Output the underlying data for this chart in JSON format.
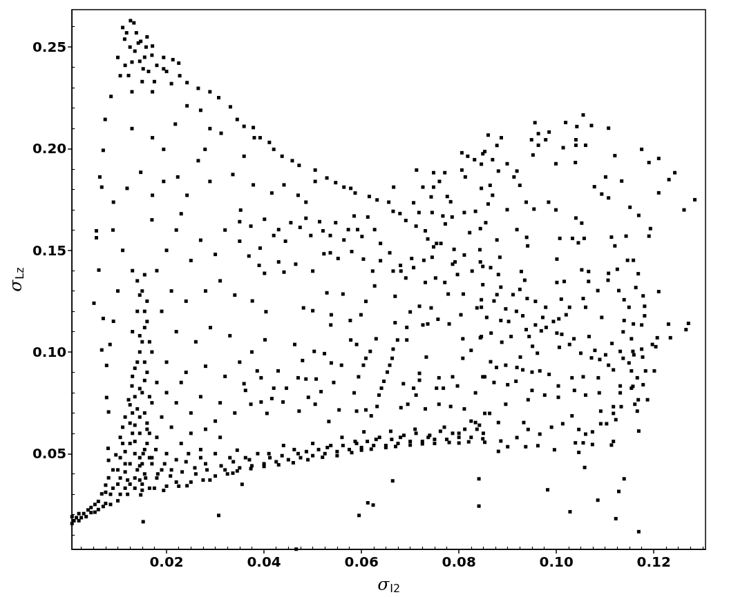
{
  "chart_data": {
    "type": "scatter",
    "xlabel": "σ$_{I2}$",
    "ylabel": "σ$_{Lz}$",
    "color": "#000000",
    "marker": "square",
    "grid": false,
    "xlim": [
      0.0006,
      0.1306
    ],
    "ylim": [
      0.0029,
      0.2684
    ],
    "xticks": [
      {
        "value": 0.0025,
        "label": null
      },
      {
        "value": 0.005,
        "label": null
      },
      {
        "value": 0.0075,
        "label": null
      },
      {
        "value": 0.01,
        "label": null
      },
      {
        "value": 0.0125,
        "label": null
      },
      {
        "value": 0.015,
        "label": null
      },
      {
        "value": 0.0175,
        "label": null
      },
      0.02,
      {
        "value": 0.0225,
        "label": null
      },
      {
        "value": 0.025,
        "label": null
      },
      {
        "value": 0.0275,
        "label": null
      },
      {
        "value": 0.03,
        "label": null
      },
      {
        "value": 0.0325,
        "label": null
      },
      {
        "value": 0.035,
        "label": null
      },
      {
        "value": 0.0375,
        "label": null
      },
      0.04,
      {
        "value": 0.0425,
        "label": null
      },
      {
        "value": 0.045,
        "label": null
      },
      {
        "value": 0.0475,
        "label": null
      },
      {
        "value": 0.05,
        "label": null
      },
      {
        "value": 0.0525,
        "label": null
      },
      {
        "value": 0.055,
        "label": null
      },
      {
        "value": 0.0575,
        "label": null
      },
      0.06,
      {
        "value": 0.0625,
        "label": null
      },
      {
        "value": 0.065,
        "label": null
      },
      {
        "value": 0.0675,
        "label": null
      },
      {
        "value": 0.07,
        "label": null
      },
      {
        "value": 0.0725,
        "label": null
      },
      {
        "value": 0.075,
        "label": null
      },
      {
        "value": 0.0775,
        "label": null
      },
      0.08,
      {
        "value": 0.0825,
        "label": null
      },
      {
        "value": 0.085,
        "label": null
      },
      {
        "value": 0.0875,
        "label": null
      },
      {
        "value": 0.09,
        "label": null
      },
      {
        "value": 0.0925,
        "label": null
      },
      {
        "value": 0.095,
        "label": null
      },
      {
        "value": 0.0975,
        "label": null
      },
      {
        "value": 0.1,
        "label": "0.10"
      },
      {
        "value": 0.1025,
        "label": null
      },
      {
        "value": 0.105,
        "label": null
      },
      {
        "value": 0.1075,
        "label": null
      },
      {
        "value": 0.11,
        "label": null
      },
      {
        "value": 0.1125,
        "label": null
      },
      {
        "value": 0.115,
        "label": null
      },
      {
        "value": 0.1175,
        "label": null
      },
      0.12,
      {
        "value": 0.1225,
        "label": null
      },
      {
        "value": 0.125,
        "label": null
      },
      {
        "value": 0.1275,
        "label": null
      },
      {
        "value": 0.13,
        "label": null
      }
    ],
    "yticks": [
      {
        "value": 0.01,
        "label": null
      },
      {
        "value": 0.02,
        "label": null
      },
      {
        "value": 0.03,
        "label": null
      },
      {
        "value": 0.04,
        "label": null
      },
      0.05,
      {
        "value": 0.06,
        "label": null
      },
      {
        "value": 0.07,
        "label": null
      },
      {
        "value": 0.08,
        "label": null
      },
      {
        "value": 0.09,
        "label": null
      },
      {
        "value": 0.1,
        "label": "0.10"
      },
      {
        "value": 0.11,
        "label": null
      },
      {
        "value": 0.12,
        "label": null
      },
      {
        "value": 0.13,
        "label": null
      },
      {
        "value": 0.14,
        "label": null
      },
      0.15,
      {
        "value": 0.16,
        "label": null
      },
      {
        "value": 0.17,
        "label": null
      },
      {
        "value": 0.18,
        "label": null
      },
      {
        "value": 0.19,
        "label": null
      },
      {
        "value": 0.2,
        "label": "0.20"
      },
      {
        "value": 0.21,
        "label": null
      },
      {
        "value": 0.22,
        "label": null
      },
      {
        "value": 0.23,
        "label": null
      },
      {
        "value": 0.24,
        "label": null
      },
      0.25,
      {
        "value": 0.26,
        "label": null
      }
    ],
    "x": [
      0.0006,
      0.0006,
      0.002,
      0.002,
      0.0039,
      0.0035,
      0.0053,
      0.0053,
      0.0067,
      0.007,
      0.0081,
      0.0085,
      0.0085,
      0.0096,
      0.01,
      0.01,
      0.01,
      0.011,
      0.011,
      0.0115,
      0.012,
      0.012,
      0.0122,
      0.0129,
      0.013,
      0.013,
      0.0135,
      0.014,
      0.0147,
      0.015,
      0.016,
      0.016,
      0.017,
      0.018,
      0.0194,
      0.02,
      0.021,
      0.022,
      0.0242,
      0.024,
      0.026,
      0.028,
      0.0289,
      0.03,
      0.032,
      0.0336,
      0.0345,
      0.0345,
      0.037,
      0.0373,
      0.04,
      0.041,
      0.043,
      0.044,
      0.046,
      0.047,
      0.049,
      0.05,
      0.052,
      0.053,
      0.055,
      0.056,
      0.058,
      0.059,
      0.06,
      0.0605,
      0.062,
      0.063,
      0.065,
      0.066,
      0.067,
      0.068,
      0.07,
      0.071,
      0.0725,
      0.074,
      0.075,
      0.077,
      0.078,
      0.08,
      0.08,
      0.082,
      0.0825,
      0.0853,
      0.0853,
      0.018,
      0.023,
      0.025,
      0.027,
      0.031,
      0.033,
      0.019,
      0.015,
      0.0135,
      0.0165,
      0.013,
      0.014,
      0.015,
      0.016,
      0.014,
      0.016,
      0.013,
      0.015,
      0.017,
      0.014,
      0.016,
      0.013,
      0.018,
      0.015,
      0.02,
      0.017,
      0.022,
      0.014,
      0.019,
      0.025,
      0.016,
      0.021,
      0.028,
      0.03,
      0.02,
      0.022,
      0.025,
      0.027,
      0.03,
      0.032,
      0.021,
      0.024,
      0.028,
      0.031,
      0.034,
      0.022,
      0.026,
      0.029,
      0.033,
      0.02,
      0.024,
      0.028,
      0.032,
      0.035,
      0.023,
      0.027,
      0.031,
      0.034,
      0.018,
      0.017,
      0.023,
      0.019,
      0.0056,
      0.0056,
      0.0051,
      0.0061,
      0.007,
      0.0067,
      0.0077,
      0.0091,
      0.0084,
      0.0077,
      0.0081,
      0.008,
      0.0081,
      0.01,
      0.011,
      0.009,
      0.0126,
      0.0133,
      0.011,
      0.0147,
      0.0171,
      0.0114,
      0.01,
      0.0129,
      0.0152,
      0.0194,
      0.0213,
      0.0225,
      0.0194,
      0.0227,
      0.0242,
      0.0265,
      0.0289,
      0.0307,
      0.0331,
      0.0345,
      0.0359,
      0.0105,
      0.0086,
      0.0074,
      0.007,
      0.0063,
      0.0067,
      0.0091,
      0.0129,
      0.0147,
      0.0171,
      0.0194,
      0.0218,
      0.0242,
      0.027,
      0.0289,
      0.0312,
      0.0279,
      0.0265,
      0.0223,
      0.0194,
      0.0242,
      0.0289,
      0.0336,
      0.0359,
      0.0171,
      0.0119,
      0.0129,
      0.0171,
      0.0135,
      0.0155,
      0.016,
      0.0378,
      0.038,
      0.0392,
      0.0411,
      0.042,
      0.0437,
      0.0458,
      0.0472,
      0.0505,
      0.0505,
      0.0529,
      0.0547,
      0.0564,
      0.0578,
      0.0587,
      0.0616,
      0.0632,
      0.0656,
      0.0665,
      0.0679,
      0.0691,
      0.0712,
      0.0731,
      0.0736,
      0.0754,
      0.079,
      0.0792,
      0.0806,
      0.0818,
      0.0832,
      0.0806,
      0.0813,
      0.0846,
      0.0849,
      0.0713,
      0.0748,
      0.0771,
      0.076,
      0.0726,
      0.0748,
      0.0743,
      0.0776,
      0.0783,
      0.0666,
      0.0707,
      0.0718,
      0.0745,
      0.0767,
      0.0786,
      0.0811,
      0.0834,
      0.0772,
      0.0822,
      0.0844,
      0.0748,
      0.0763,
      0.0811,
      0.0745,
      0.0728,
      0.0703,
      0.0707,
      0.0691,
      0.068,
      0.0658,
      0.0639,
      0.0639,
      0.0627,
      0.0592,
      0.0573,
      0.0564,
      0.058,
      0.0604,
      0.0623,
      0.0627,
      0.0665,
      0.0681,
      0.0731,
      0.0752,
      0.0771,
      0.0787,
      0.0797,
      0.0827,
      0.0844,
      0.0552,
      0.0536,
      0.0521,
      0.0496,
      0.0455,
      0.0474,
      0.0486,
      0.0514,
      0.0547,
      0.0585,
      0.0613,
      0.0601,
      0.0523,
      0.0536,
      0.05,
      0.0465,
      0.0441,
      0.0401,
      0.039,
      0.043,
      0.0444,
      0.042,
      0.0392,
      0.043,
      0.0373,
      0.035,
      0.035,
      0.0369,
      0.0416,
      0.0441,
      0.047,
      0.0486,
      0.0378,
      0.0352,
      0.0401,
      0.0376,
      0.0404,
      0.0481,
      0.05,
      0.0529,
      0.0562,
      0.0609,
      0.0599,
      0.0538,
      0.0577,
      0.0537,
      0.0669,
      0.07,
      0.0719,
      0.0743,
      0.0726,
      0.0693,
      0.0669,
      0.0757,
      0.078,
      0.0804,
      0.0837,
      0.0846,
      0.0809,
      0.0778,
      0.0665,
      0.0663,
      0.0658,
      0.0653,
      0.0646,
      0.0641,
      0.0636,
      0.0632,
      0.0674,
      0.0693,
      0.063,
      0.0578,
      0.059,
      0.0618,
      0.0609,
      0.0604,
      0.0594,
      0.0585,
      0.059,
      0.0538,
      0.0524,
      0.0503,
      0.0479,
      0.0463,
      0.0429,
      0.0386,
      0.0394,
      0.0359,
      0.0362,
      0.042,
      0.0446,
      0.047,
      0.0486,
      0.0507,
      0.0543,
      0.0559,
      0.0491,
      0.0517,
      0.0394,
      0.0416,
      0.0439,
      0.0373,
      0.0406,
      0.0472,
      0.0505,
      0.0533,
      0.0554,
      0.0609,
      0.062,
      0.0681,
      0.0695,
      0.0712,
      0.0731,
      0.0759,
      0.0783,
      0.0811,
      0.0849,
      0.0834,
      0.0797,
      0.0787,
      0.0768,
      0.0754,
      0.0719,
      0.0719,
      0.0707,
      0.0686,
      0.0825,
      0.0808,
      0.0844,
      0.0808,
      0.0733,
      0.0736,
      0.0759,
      0.0402,
      0.0375,
      0.1055,
      0.1019,
      0.1042,
      0.1072,
      0.1107,
      0.0956,
      0.0963,
      0.0985,
      0.0949,
      0.0978,
      0.0963,
      0.104,
      0.104,
      0.106,
      0.1014,
      0.0952,
      0.0999,
      0.1039,
      0.112,
      0.1175,
      0.119,
      0.121,
      0.1243,
      0.1231,
      0.121,
      0.1284,
      0.1262,
      0.1101,
      0.1134,
      0.1078,
      0.1093,
      0.1107,
      0.1151,
      0.1169,
      0.1193,
      0.119,
      0.1143,
      0.1113,
      0.112,
      0.104,
      0.1052,
      0.1007,
      0.1033,
      0.1057,
      0.1045,
      0.1001,
      0.1146,
      0.1158,
      0.1052,
      0.1066,
      0.1107,
      0.1125,
      0.1168,
      0.1106,
      0.1066,
      0.1001,
      0.1016,
      0.1085,
      0.1128,
      0.1163,
      0.1178,
      0.121,
      0.1055,
      0.1139,
      0.1149,
      0.1181,
      0.106,
      0.1093,
      0.1139,
      0.1158,
      0.1175,
      0.1181,
      0.1271,
      0.1266,
      0.1137,
      0.1234,
      0.1207,
      0.1154,
      0.086,
      0.0887,
      0.0878,
      0.0853,
      0.0869,
      0.0899,
      0.0881,
      0.0919,
      0.0913,
      0.0925,
      0.0864,
      0.0846,
      0.0869,
      0.086,
      0.0899,
      0.0938,
      0.0954,
      0.0984,
      0.0999,
      0.0855,
      0.0919,
      0.0939,
      0.0941,
      0.0878,
      0.0843,
      0.0884,
      0.0849,
      0.0865,
      0.0928,
      0.0881,
      0.0849,
      0.0886,
      0.0935,
      0.0925,
      0.0878,
      0.0911,
      0.094,
      0.0957,
      0.0872,
      0.0846,
      0.0896,
      0.0918,
      0.0931,
      0.0978,
      0.101,
      0.1027,
      0.102,
      0.1005,
      0.0972,
      0.0957,
      0.0979,
      0.0994,
      0.0969,
      0.0857,
      0.0886,
      0.0902,
      0.0938,
      0.0866,
      0.0846,
      0.0888,
      0.0907,
      0.0944,
      0.1001,
      0.1011,
      0.1036,
      0.1067,
      0.1027,
      0.0951,
      0.0961,
      0.1006,
      0.105,
      0.1079,
      0.1114,
      0.1131,
      0.1157,
      0.1175,
      0.1197,
      0.1204,
      0.1177,
      0.1159,
      0.1137,
      0.1072,
      0.1089,
      0.1101,
      0.1107,
      0.1117,
      0.1149,
      0.1183,
      0.1201,
      0.1154,
      0.1166,
      0.1178,
      0.1157,
      0.1131,
      0.1086,
      0.1055,
      0.1032,
      0.1004,
      0.0985,
      0.0966,
      0.095,
      0.0931,
      0.0919,
      0.0926,
      0.0896,
      0.0877,
      0.0865,
      0.0853,
      0.0872,
      0.09,
      0.0917,
      0.095,
      0.123,
      0.1187,
      0.1168,
      0.1161,
      0.1166,
      0.1133,
      0.1117,
      0.1117,
      0.1122,
      0.1103,
      0.1091,
      0.1091,
      0.1074,
      0.106,
      0.1074,
      0.1055,
      0.1039,
      0.1046,
      0.1058,
      0.1117,
      0.1113,
      0.0996,
      0.0962,
      0.0937,
      0.09,
      0.0881,
      0.0841,
      0.0841,
      0.0982,
      0.1028,
      0.1085,
      0.1128,
      0.1139,
      0.1122,
      0.1169,
      0.1169,
      0.1046,
      0.0849,
      0.0886,
      0.0919,
      0.0942,
      0.0966,
      0.099,
      0.1013,
      0.1032,
      0.1004,
      0.0976,
      0.0942,
      0.0896,
      0.0863,
      0.0834,
      0.0881,
      0.0933,
      0.1037,
      0.106,
      0.1088,
      0.1131,
      0.1154,
      0.0152,
      0.0307,
      0.0355,
      0.0595,
      0.0613,
      0.0624,
      0.0664,
      0.0466,
      0.015,
      0.0157,
      0.0145,
      0.0152,
      0.0175,
      0.0182,
      0.017,
      0.0178,
      0.02,
      0.0208,
      0.0196,
      0.0225,
      0.0232,
      0.022,
      0.025,
      0.0258,
      0.0245,
      0.0275,
      0.0283,
      0.027,
      0.03,
      0.0312,
      0.0325,
      0.0337,
      0.035,
      0.0362,
      0.0375,
      0.0387,
      0.04,
      0.0412,
      0.0425,
      0.0437,
      0.045,
      0.0462,
      0.0475,
      0.0487,
      0.05,
      0.0512,
      0.0525,
      0.0537,
      0.055,
      0.0562,
      0.0575,
      0.0587,
      0.06,
      0.0612,
      0.0625,
      0.0637,
      0.065,
      0.0662,
      0.0675,
      0.0687,
      0.07,
      0.0712,
      0.0725,
      0.0737,
      0.075,
      0.0762,
      0.0775,
      0.0787,
      0.08,
      0.0812,
      0.0825,
      0.0837,
      0.085,
      0.0842,
      0.009,
      0.009,
      0.0105,
      0.0105,
      0.0105,
      0.0105,
      0.0115,
      0.0115,
      0.0115,
      0.0115,
      0.0125,
      0.0125,
      0.0125,
      0.0125,
      0.0125,
      0.0135,
      0.0135,
      0.0135,
      0.0135,
      0.0135,
      0.0145,
      0.0145,
      0.0145,
      0.0145,
      0.0145,
      0.0145,
      0.0145,
      0.0145,
      0.0155,
      0.0155,
      0.0155,
      0.0155,
      0.0155,
      0.0155,
      0.0155,
      0.0155,
      0.0165,
      0.0165,
      0.0165,
      0.0165,
      0.0118,
      0.0138,
      0.0142,
      0.0125,
      0.0158,
      0.017,
      0.0145,
      0.018,
      0.0115,
      0.0163,
      0.0122,
      0.02,
      0.015,
      0.0175,
      0.021,
      0.001,
      0.0015,
      0.0025,
      0.003,
      0.0045,
      0.0045,
      0.006,
      0.006,
      0.0075,
      0.0075,
      0.0075
    ],
    "values": [
      0.0156,
      0.019,
      0.017,
      0.0205,
      0.0223,
      0.019,
      0.0212,
      0.025,
      0.0302,
      0.024,
      0.0381,
      0.03,
      0.025,
      0.0494,
      0.0268,
      0.035,
      0.042,
      0.063,
      0.055,
      0.045,
      0.037,
      0.03,
      0.0765,
      0.0833,
      0.07,
      0.06,
      0.05,
      0.042,
      0.0297,
      0.035,
      0.055,
      0.065,
      0.045,
      0.038,
      0.0319,
      0.05,
      0.042,
      0.036,
      0.0342,
      0.046,
      0.04,
      0.045,
      0.037,
      0.05,
      0.042,
      0.0404,
      0.0415,
      0.0517,
      0.047,
      0.0426,
      0.0437,
      0.05,
      0.0445,
      0.054,
      0.0455,
      0.05,
      0.047,
      0.055,
      0.0482,
      0.053,
      0.049,
      0.058,
      0.0505,
      0.055,
      0.0517,
      0.0607,
      0.0522,
      0.057,
      0.053,
      0.061,
      0.0535,
      0.058,
      0.0542,
      0.062,
      0.0548,
      0.059,
      0.055,
      0.063,
      0.0555,
      0.0552,
      0.06,
      0.0558,
      0.066,
      0.0556,
      0.0698,
      0.058,
      0.055,
      0.06,
      0.052,
      0.058,
      0.048,
      0.042,
      0.045,
      0.033,
      0.033,
      0.14,
      0.135,
      0.13,
      0.125,
      0.12,
      0.115,
      0.11,
      0.105,
      0.1,
      0.095,
      0.09,
      0.088,
      0.085,
      0.08,
      0.08,
      0.075,
      0.075,
      0.072,
      0.068,
      0.07,
      0.062,
      0.063,
      0.062,
      0.066,
      0.15,
      0.16,
      0.145,
      0.155,
      0.148,
      0.16,
      0.13,
      0.125,
      0.13,
      0.135,
      0.128,
      0.11,
      0.105,
      0.112,
      0.108,
      0.095,
      0.09,
      0.093,
      0.088,
      0.095,
      0.085,
      0.078,
      0.075,
      0.07,
      0.14,
      0.165,
      0.168,
      0.12,
      0.1596,
      0.1562,
      0.124,
      0.1403,
      0.1165,
      0.101,
      0.0934,
      0.1151,
      0.1037,
      0.0776,
      0.0705,
      0.0526,
      0.0467,
      0.13,
      0.15,
      0.16,
      0.263,
      0.2619,
      0.2596,
      0.2528,
      0.2505,
      0.2539,
      0.2449,
      0.2426,
      0.2393,
      0.2449,
      0.2438,
      0.2421,
      0.2393,
      0.2359,
      0.2325,
      0.2297,
      0.228,
      0.2251,
      0.2206,
      0.2144,
      0.211,
      0.2359,
      0.2257,
      0.2144,
      0.1992,
      0.1861,
      0.1811,
      0.1737,
      0.2099,
      0.1884,
      0.2054,
      0.1997,
      0.2121,
      0.2211,
      0.2189,
      0.2099,
      0.2076,
      0.1997,
      0.1941,
      0.1861,
      0.1839,
      0.1771,
      0.1839,
      0.1873,
      0.1963,
      0.1771,
      0.1805,
      0.228,
      0.228,
      0.248,
      0.245,
      0.255,
      0.2104,
      0.2054,
      0.2054,
      0.2031,
      0.1997,
      0.1963,
      0.1941,
      0.1918,
      0.1895,
      0.1839,
      0.1856,
      0.1833,
      0.1811,
      0.1805,
      0.1782,
      0.1765,
      0.1748,
      0.1737,
      0.1692,
      0.1681,
      0.1647,
      0.1619,
      0.1596,
      0.1556,
      0.1534,
      0.1505,
      0.1443,
      0.198,
      0.1963,
      0.1946,
      0.1895,
      0.1861,
      0.1924,
      0.1975,
      0.1895,
      0.1882,
      0.1882,
      0.1839,
      0.1811,
      0.1811,
      0.1763,
      0.1765,
      0.1739,
      0.1811,
      0.1734,
      0.1686,
      0.1686,
      0.1669,
      0.1664,
      0.1686,
      0.1692,
      0.163,
      0.1587,
      0.1607,
      0.1517,
      0.1534,
      0.1477,
      0.1466,
      0.1451,
      0.146,
      0.1415,
      0.1364,
      0.1426,
      0.1488,
      0.1449,
      0.1534,
      0.1602,
      0.1602,
      0.1602,
      0.1551,
      0.1494,
      0.1457,
      0.1398,
      0.1325,
      0.1398,
      0.1398,
      0.1342,
      0.1364,
      0.1342,
      0.1432,
      0.1381,
      0.1398,
      0.1443,
      0.146,
      0.1573,
      0.1596,
      0.1573,
      0.1636,
      0.1613,
      0.1658,
      0.1641,
      0.1636,
      0.1669,
      0.1664,
      0.1568,
      0.1483,
      0.1488,
      0.1398,
      0.1432,
      0.1393,
      0.1387,
      0.1426,
      0.1443,
      0.1545,
      0.1573,
      0.1511,
      0.1602,
      0.1619,
      0.1641,
      0.1545,
      0.1472,
      0.1782,
      0.1822,
      0.1771,
      0.1737,
      0.1822,
      0.1698,
      0.1653,
      0.1251,
      0.1198,
      0.1217,
      0.1203,
      0.1291,
      0.1285,
      0.1249,
      0.1183,
      0.1183,
      0.1155,
      0.1133,
      0.1274,
      0.1197,
      0.1225,
      0.1217,
      0.1133,
      0.1121,
      0.1144,
      0.1161,
      0.1138,
      0.1183,
      0.1217,
      0.1257,
      0.1285,
      0.1285,
      0.1014,
      0.0969,
      0.0935,
      0.0901,
      0.0856,
      0.0822,
      0.0788,
      0.0732,
      0.1059,
      0.1059,
      0.1065,
      0.1059,
      0.1037,
      0.1003,
      0.0969,
      0.0935,
      0.0878,
      0.0799,
      0.0709,
      0.0946,
      0.0992,
      0.1003,
      0.0958,
      0.1037,
      0.0907,
      0.0907,
      0.0873,
      0.0844,
      0.0811,
      0.0822,
      0.0822,
      0.0873,
      0.0867,
      0.0867,
      0.085,
      0.0935,
      0.0777,
      0.0805,
      0.0754,
      0.0771,
      0.0754,
      0.0743,
      0.0698,
      0.0709,
      0.0743,
      0.0658,
      0.0715,
      0.0715,
      0.0686,
      0.0726,
      0.0743,
      0.0788,
      0.072,
      0.0743,
      0.0732,
      0.072,
      0.0878,
      0.0799,
      0.0833,
      0.0878,
      0.0822,
      0.0822,
      0.0861,
      0.0895,
      0.0822,
      0.0844,
      0.1008,
      0.1065,
      0.107,
      0.0969,
      0.0975,
      0.1138,
      0.0873,
      0.106,
      0.1,
      0.2166,
      0.2129,
      0.2109,
      0.2114,
      0.2101,
      0.2128,
      0.2074,
      0.2082,
      0.2044,
      0.2044,
      0.2017,
      0.2044,
      0.2017,
      0.2017,
      0.2005,
      0.1969,
      0.1926,
      0.1932,
      0.1966,
      0.1997,
      0.1932,
      0.1952,
      0.1882,
      0.1848,
      0.1783,
      0.1749,
      0.1699,
      0.1861,
      0.1841,
      0.1813,
      0.1777,
      0.1758,
      0.1712,
      0.1672,
      0.1607,
      0.157,
      0.157,
      0.1565,
      0.1522,
      0.1659,
      0.1634,
      0.1559,
      0.1559,
      0.1559,
      0.1537,
      0.1457,
      0.1451,
      0.1451,
      0.1404,
      0.1396,
      0.1387,
      0.1407,
      0.1385,
      0.1353,
      0.1347,
      0.1342,
      0.1347,
      0.1302,
      0.1302,
      0.1317,
      0.1276,
      0.1297,
      0.1263,
      0.1257,
      0.122,
      0.1225,
      0.122,
      0.117,
      0.1155,
      0.1138,
      0.1133,
      0.1178,
      0.1141,
      0.111,
      0.1099,
      0.107,
      0.107,
      0.1065,
      0.2067,
      0.2054,
      0.2016,
      0.1986,
      0.1946,
      0.1926,
      0.189,
      0.189,
      0.1861,
      0.182,
      0.182,
      0.1805,
      0.1771,
      0.1728,
      0.17,
      0.1737,
      0.1703,
      0.1737,
      0.1699,
      0.1636,
      0.1602,
      0.1564,
      0.1522,
      0.1551,
      0.1503,
      0.1466,
      0.1421,
      0.1415,
      0.1396,
      0.1381,
      0.1331,
      0.1319,
      0.1353,
      0.1308,
      0.1282,
      0.1282,
      0.1263,
      0.1249,
      0.1251,
      0.122,
      0.1212,
      0.12,
      0.1178,
      0.122,
      0.126,
      0.122,
      0.1183,
      0.1163,
      0.117,
      0.1133,
      0.1121,
      0.115,
      0.1104,
      0.117,
      0.1155,
      0.115,
      0.111,
      0.1093,
      0.1076,
      0.1048,
      0.1076,
      0.1076,
      0.1093,
      0.1087,
      0.1065,
      0.1076,
      0.1037,
      0.1028,
      0.0994,
      0.1023,
      0.0994,
      0.1008,
      0.1042,
      0.1003,
      0.1003,
      0.1014,
      0.1037,
      0.1026,
      0.0975,
      0.0986,
      0.0969,
      0.0971,
      0.0963,
      0.0986,
      0.0935,
      0.0912,
      0.0946,
      0.0907,
      0.0907,
      0.0907,
      0.0873,
      0.0839,
      0.0831,
      0.0833,
      0.0873,
      0.0878,
      0.0873,
      0.0833,
      0.089,
      0.0907,
      0.0901,
      0.0912,
      0.0924,
      0.0975,
      0.0935,
      0.0924,
      0.0952,
      0.0878,
      0.085,
      0.0839,
      0.0856,
      0.0811,
      0.1137,
      0.0765,
      0.0765,
      0.0743,
      0.0709,
      0.0731,
      0.0731,
      0.0698,
      0.0667,
      0.0647,
      0.0647,
      0.0709,
      0.0607,
      0.0596,
      0.0545,
      0.0553,
      0.0553,
      0.0506,
      0.0432,
      0.056,
      0.0542,
      0.0519,
      0.0539,
      0.0534,
      0.0534,
      0.0511,
      0.0376,
      0.0242,
      0.0322,
      0.0214,
      0.0271,
      0.0314,
      0.0376,
      0.018,
      0.0116,
      0.0611,
      0.0619,
      0.0573,
      0.0562,
      0.0579,
      0.0619,
      0.0596,
      0.063,
      0.0647,
      0.0686,
      0.0777,
      0.0788,
      0.0765,
      0.0743,
      0.0698,
      0.0653,
      0.0653,
      0.0653,
      0.0811,
      0.0788,
      0.0799,
      0.0799,
      0.0822,
      0.0165,
      0.0196,
      0.0349,
      0.0196,
      0.0258,
      0.0247,
      0.0366,
      0.003,
      0.032,
      0.038,
      0.044,
      0.05,
      0.033,
      0.04,
      0.048,
      0.052,
      0.034,
      0.039,
      0.045,
      0.034,
      0.041,
      0.047,
      0.036,
      0.043,
      0.05,
      0.037,
      0.042,
      0.048,
      0.039,
      0.044,
      0.04,
      0.046,
      0.043,
      0.048,
      0.044,
      0.05,
      0.045,
      0.048,
      0.046,
      0.049,
      0.047,
      0.052,
      0.048,
      0.051,
      0.049,
      0.052,
      0.05,
      0.054,
      0.051,
      0.054,
      0.052,
      0.056,
      0.053,
      0.056,
      0.054,
      0.058,
      0.054,
      0.057,
      0.055,
      0.059,
      0.056,
      0.06,
      0.056,
      0.058,
      0.057,
      0.061,
      0.057,
      0.06,
      0.058,
      0.062,
      0.058,
      0.062,
      0.06,
      0.064,
      0.033,
      0.042,
      0.03,
      0.038,
      0.048,
      0.058,
      0.033,
      0.041,
      0.051,
      0.068,
      0.035,
      0.045,
      0.055,
      0.065,
      0.074,
      0.038,
      0.056,
      0.064,
      0.078,
      0.092,
      0.037,
      0.048,
      0.06,
      0.068,
      0.082,
      0.1,
      0.108,
      0.128,
      0.04,
      0.052,
      0.07,
      0.086,
      0.095,
      0.112,
      0.12,
      0.138,
      0.048,
      0.06,
      0.078,
      0.105,
      0.257,
      0.257,
      0.252,
      0.25,
      0.25,
      0.246,
      0.243,
      0.241,
      0.241,
      0.238,
      0.236,
      0.238,
      0.233,
      0.233,
      0.232,
      0.017,
      0.0185,
      0.0185,
      0.0205,
      0.021,
      0.0235,
      0.0225,
      0.0265,
      0.0255,
      0.031,
      0.0345
    ]
  }
}
